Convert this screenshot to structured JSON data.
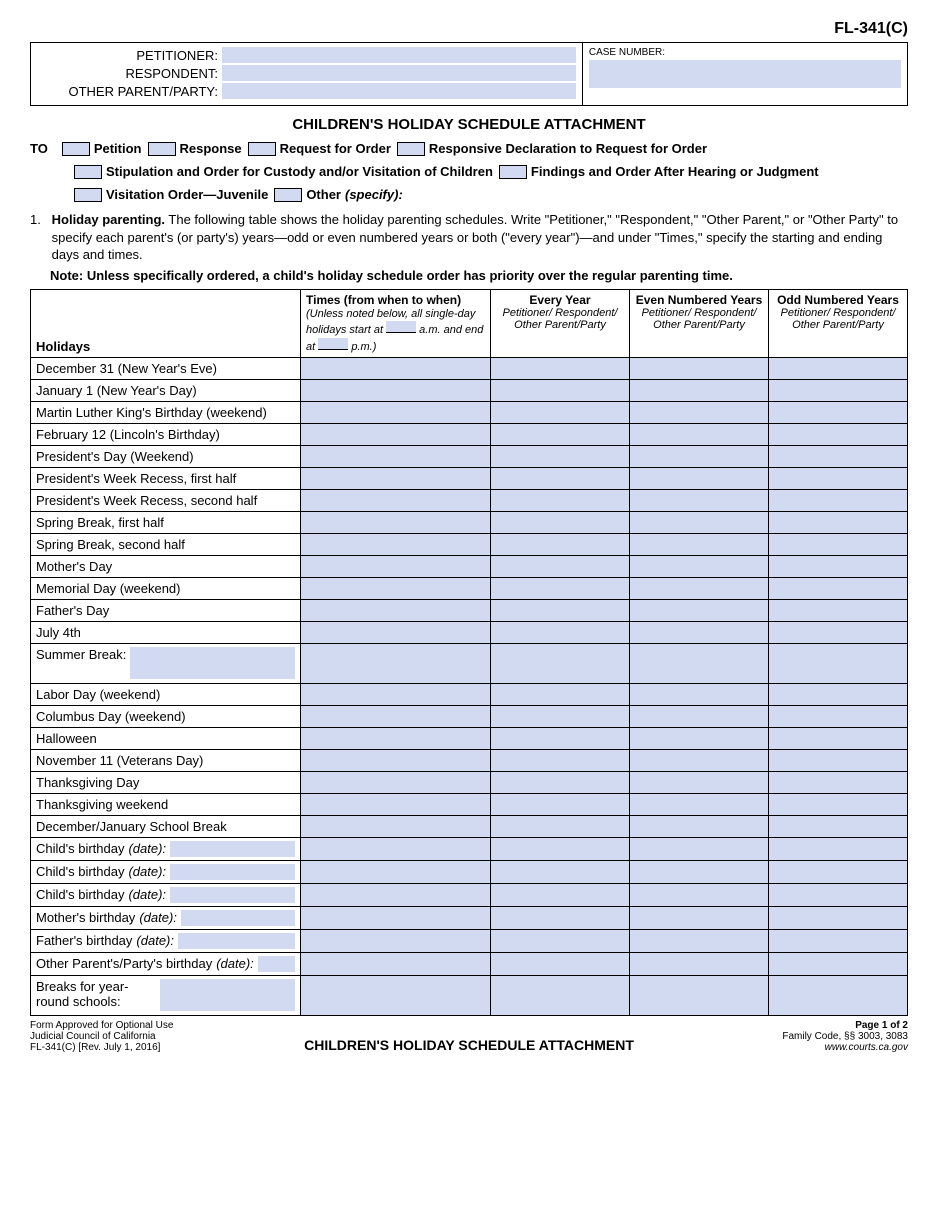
{
  "form_code": "FL-341(C)",
  "header": {
    "petitioner_label": "PETITIONER:",
    "respondent_label": "RESPONDENT:",
    "other_party_label": "OTHER PARENT/PARTY:",
    "case_number_label": "CASE NUMBER:"
  },
  "title": "CHILDREN'S HOLIDAY SCHEDULE ATTACHMENT",
  "to": {
    "to_label": "TO",
    "petition": "Petition",
    "response": "Response",
    "request_for_order": "Request for Order",
    "responsive_decl": "Responsive Declaration to Request for Order",
    "stipulation": "Stipulation and Order for Custody and/or Visitation of Children",
    "findings": "Findings and Order After Hearing or Judgment",
    "visitation_juvenile": "Visitation Order—Juvenile",
    "other_label": "Other",
    "specify": "(specify):"
  },
  "section1": {
    "num": "1.",
    "heading": "Holiday parenting.",
    "body": "The following table shows the holiday parenting schedules. Write \"Petitioner,\" \"Respondent,\" \"Other Parent,\" or \"Other Party\" to specify each parent's (or party's) years—odd or even numbered years or both (\"every year\")—and under \"Times,\" specify the starting and ending days and times.",
    "note": "Note: Unless specifically ordered, a child's holiday schedule order has priority over the regular parenting time."
  },
  "table": {
    "th_holidays": "Holidays",
    "th_times_title": "Times (from when to when)",
    "th_times_sub1": "(Unless noted below, all single-day holidays start at",
    "th_times_am": "a.m.",
    "th_times_sub2": "and end at",
    "th_times_pm": "p.m.)",
    "th_every_year": "Every Year",
    "th_even_years": "Even Numbered Years",
    "th_odd_years": "Odd Numbered Years",
    "th_sub": "Petitioner/\nRespondent/\nOther Parent/Party",
    "holidays": [
      {
        "label": "December 31 (New Year's Eve)",
        "type": "plain"
      },
      {
        "label": "January 1 (New Year's Day)",
        "type": "plain"
      },
      {
        "label": "Martin Luther King's Birthday (weekend)",
        "type": "plain"
      },
      {
        "label": "February 12 (Lincoln's Birthday)",
        "type": "plain"
      },
      {
        "label": "President's Day (Weekend)",
        "type": "plain"
      },
      {
        "label": "President's Week Recess, first half",
        "type": "plain"
      },
      {
        "label": "President's Week Recess, second half",
        "type": "plain"
      },
      {
        "label": "Spring Break, first half",
        "type": "plain"
      },
      {
        "label": "Spring Break, second half",
        "type": "plain"
      },
      {
        "label": "Mother's Day",
        "type": "plain"
      },
      {
        "label": "Memorial Day (weekend)",
        "type": "plain"
      },
      {
        "label": "Father's Day",
        "type": "plain"
      },
      {
        "label": "July 4th",
        "type": "plain"
      },
      {
        "label": "Summer Break:",
        "type": "withfield",
        "tall": true
      },
      {
        "label": "Labor Day (weekend)",
        "type": "plain"
      },
      {
        "label": "Columbus Day (weekend)",
        "type": "plain"
      },
      {
        "label": "Halloween",
        "type": "plain"
      },
      {
        "label": "November 11 (Veterans Day)",
        "type": "plain"
      },
      {
        "label": "Thanksgiving Day",
        "type": "plain"
      },
      {
        "label": "Thanksgiving weekend",
        "type": "plain"
      },
      {
        "label": "December/January School Break",
        "type": "plain"
      },
      {
        "label": "Child's birthday ",
        "suffix": "(date):",
        "type": "withfield"
      },
      {
        "label": "Child's birthday ",
        "suffix": "(date):",
        "type": "withfield"
      },
      {
        "label": "Child's birthday ",
        "suffix": "(date):",
        "type": "withfield"
      },
      {
        "label": "Mother's birthday ",
        "suffix": "(date):",
        "type": "withfield"
      },
      {
        "label": "Father's birthday ",
        "suffix": "(date):",
        "type": "withfield"
      },
      {
        "label": "Other Parent's/Party's birthday ",
        "suffix": "(date):",
        "type": "withfield",
        "wrap": true
      },
      {
        "label": "Breaks for\nyear-round schools:",
        "type": "withfield",
        "tall": true,
        "wrap": true
      }
    ]
  },
  "footer": {
    "left1": "Form Approved for Optional Use",
    "left2": "Judicial Council of California",
    "left3": "FL-341(C) [Rev. July 1, 2016]",
    "center": "CHILDREN'S HOLIDAY SCHEDULE ATTACHMENT",
    "right1": "Page 1 of 2",
    "right2": "Family Code, §§ 3003, 3083",
    "right3": "www.courts.ca.gov"
  },
  "colors": {
    "fill": "#d1daf0",
    "border": "#000000",
    "text": "#000000",
    "background": "#ffffff"
  }
}
